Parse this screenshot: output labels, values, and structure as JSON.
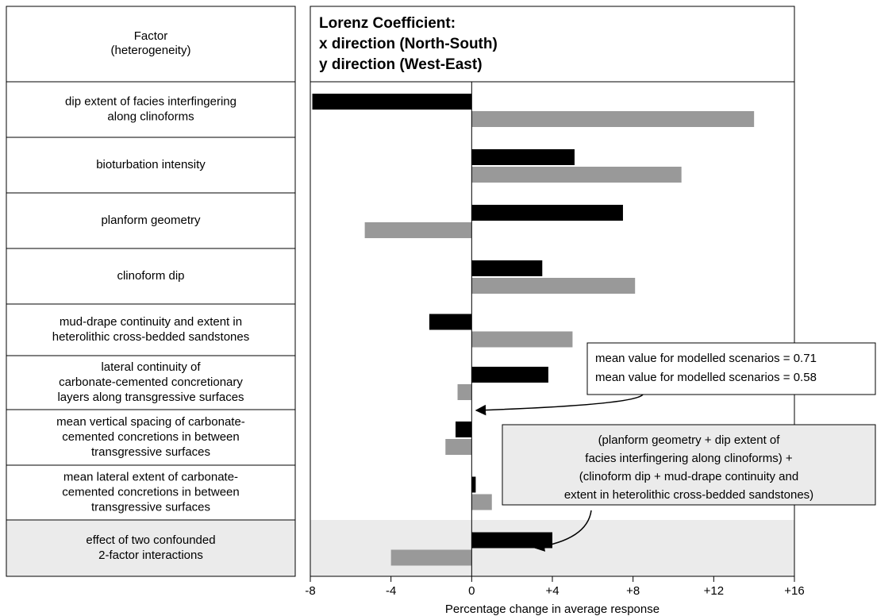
{
  "chart_data": {
    "type": "bar",
    "orientation": "horizontal",
    "title": "Lorenz Coefficient:",
    "factor_header": "Factor\n(heterogeneity)",
    "x_label": "Percentage change in average response",
    "categories": [
      "dip extent of facies interfingering\nalong clinoforms",
      "bioturbation intensity",
      "planform geometry",
      "clinoform dip",
      "mud-drape continuity and extent in\nheterolithic cross-bedded sandstones",
      "lateral continuity of\ncarbonate-cemented concretionary\nlayers along transgressive surfaces",
      "mean vertical spacing of carbonate-\ncemented concretions in between\ntransgressive surfaces",
      "mean lateral extent of carbonate-\ncemented concretions in between\ntransgressive surfaces",
      "effect of two confounded\n2-factor interactions"
    ],
    "series": [
      {
        "name": "x direction (North-South)",
        "color": "#000000",
        "values": [
          -7.9,
          5.1,
          7.5,
          3.5,
          -2.1,
          3.8,
          -0.8,
          0.2,
          4.0
        ]
      },
      {
        "name": "y direction (West-East)",
        "color": "#999999",
        "values": [
          14.0,
          10.4,
          -5.3,
          8.1,
          5.0,
          -0.7,
          -1.3,
          1.0,
          -4.0
        ]
      }
    ],
    "xlim": [
      -8,
      16
    ],
    "xticks": [
      -8,
      -4,
      0,
      {
        "value": 4,
        "label": "+4"
      },
      {
        "value": 8,
        "label": "+8"
      },
      {
        "value": 12,
        "label": "+12"
      },
      {
        "value": 16,
        "label": "+16"
      }
    ],
    "annotations": [
      {
        "lines": [
          "mean value for modelled scenarios = 0.71",
          "mean value for modelled scenarios = 0.58"
        ],
        "colors": [
          "#000000",
          "#999999"
        ]
      },
      {
        "text": "(planform geometry + dip extent of\nfacies interfingering along clinoforms) +\n(clinoform dip + mud-drape continuity and\nextent in heterolithic cross-bedded sandstones)"
      }
    ]
  }
}
